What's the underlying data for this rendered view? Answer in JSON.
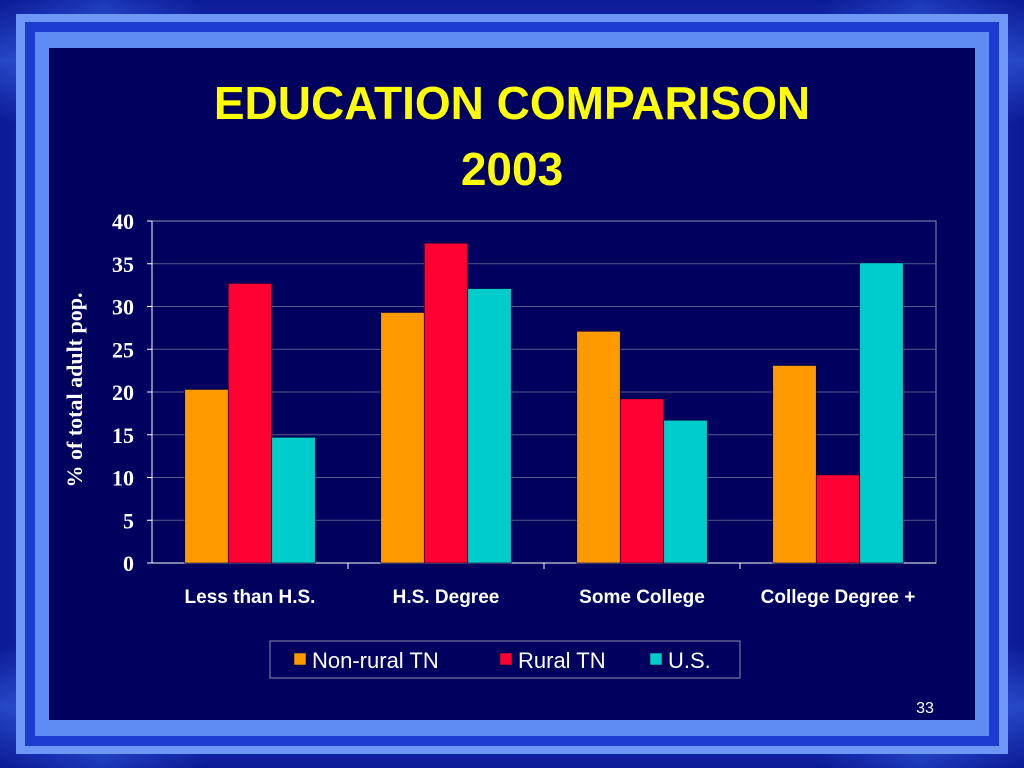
{
  "slide": {
    "title_line1": "EDUCATION COMPARISON",
    "title_line2": "2003",
    "page_number": "33"
  },
  "colors": {
    "background": "#00005e",
    "title": "#ffff00",
    "axis_text": "#ffffff",
    "series": [
      "#ff9900",
      "#ff0033",
      "#00cccc"
    ]
  },
  "chart_data": {
    "type": "bar",
    "categories": [
      "Less than H.S.",
      "H.S. Degree",
      "Some College",
      "College Degree +"
    ],
    "series": [
      {
        "name": "Non-rural TN",
        "values": [
          20.3,
          29.3,
          27.1,
          23.1
        ]
      },
      {
        "name": "Rural TN",
        "values": [
          32.7,
          37.4,
          19.2,
          10.3
        ]
      },
      {
        "name": "U.S.",
        "values": [
          14.7,
          32.1,
          16.7,
          35.1
        ]
      }
    ],
    "ylabel": "% of total adult pop.",
    "xlabel": "",
    "ylim": [
      0,
      40
    ],
    "yticks": [
      "0",
      "5",
      "10",
      "15",
      "20",
      "25",
      "30",
      "35",
      "40"
    ],
    "grid": true,
    "legend_position": "bottom"
  }
}
